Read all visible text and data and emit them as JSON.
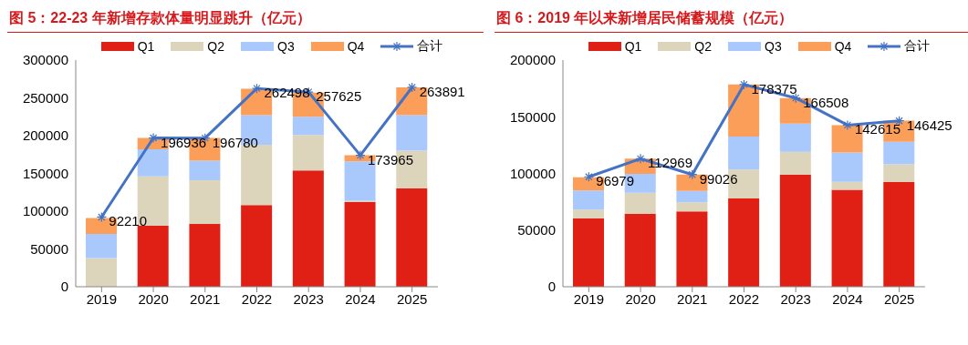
{
  "chart_data": [
    {
      "type": "bar",
      "title": "图 5：22-23 年新增存款体量明显跳升（亿元）",
      "categories": [
        "2019",
        "2020",
        "2021",
        "2022",
        "2023",
        "2024",
        "2025"
      ],
      "stacked": true,
      "ylim": [
        0,
        300000
      ],
      "yticks": [
        0,
        50000,
        100000,
        150000,
        200000,
        250000,
        300000
      ],
      "grid": false,
      "legend": "top",
      "marker": "cross",
      "series": [
        {
          "name": "Q1",
          "color": "#e02015",
          "values": [
            null,
            81000,
            83000,
            108000,
            154000,
            112000,
            130000
          ]
        },
        {
          "name": "Q2",
          "color": "#ddd4bc",
          "values": [
            38000,
            65000,
            58000,
            80000,
            47000,
            2000,
            50000
          ]
        },
        {
          "name": "Q3",
          "color": "#a9c8fb",
          "values": [
            32000,
            36000,
            26000,
            39000,
            24000,
            52000,
            47000
          ]
        },
        {
          "name": "Q4",
          "color": "#fb9e5a",
          "values": [
            21000,
            15000,
            30000,
            35000,
            32000,
            8000,
            37000
          ]
        },
        {
          "name": "合计",
          "type": "line",
          "color": "#4472c4",
          "values": [
            92210,
            196936,
            196780,
            262498,
            257625,
            173965,
            263891
          ],
          "value_labels": [
            "92210",
            "196936",
            "196780",
            "262498",
            "257625",
            "173965",
            "263891"
          ]
        }
      ]
    },
    {
      "type": "bar",
      "title": "图 6：2019 年以来新增居民储蓄规模（亿元）",
      "categories": [
        "2019",
        "2020",
        "2021",
        "2022",
        "2023",
        "2024",
        "2025"
      ],
      "stacked": true,
      "ylim": [
        0,
        200000
      ],
      "yticks": [
        0,
        50000,
        100000,
        150000,
        200000
      ],
      "grid": false,
      "legend": "top",
      "marker": "cross",
      "series": [
        {
          "name": "Q1",
          "color": "#e02015",
          "values": [
            60500,
            64500,
            66500,
            78000,
            99000,
            85500,
            92500
          ]
        },
        {
          "name": "Q2",
          "color": "#ddd4bc",
          "values": [
            7500,
            18500,
            8000,
            25500,
            20000,
            7000,
            15500
          ]
        },
        {
          "name": "Q3",
          "color": "#a9c8fb",
          "values": [
            17000,
            16500,
            10000,
            29000,
            25000,
            26000,
            20000
          ]
        },
        {
          "name": "Q4",
          "color": "#fb9e5a",
          "values": [
            11500,
            13500,
            14500,
            46000,
            22500,
            24000,
            18500
          ]
        },
        {
          "name": "合计",
          "type": "line",
          "color": "#4472c4",
          "values": [
            96979,
            112969,
            99026,
            178375,
            166508,
            142615,
            146425
          ],
          "value_labels": [
            "96979",
            "112969",
            "99026",
            "178375",
            "166508",
            "142615",
            "146425"
          ]
        }
      ]
    }
  ]
}
